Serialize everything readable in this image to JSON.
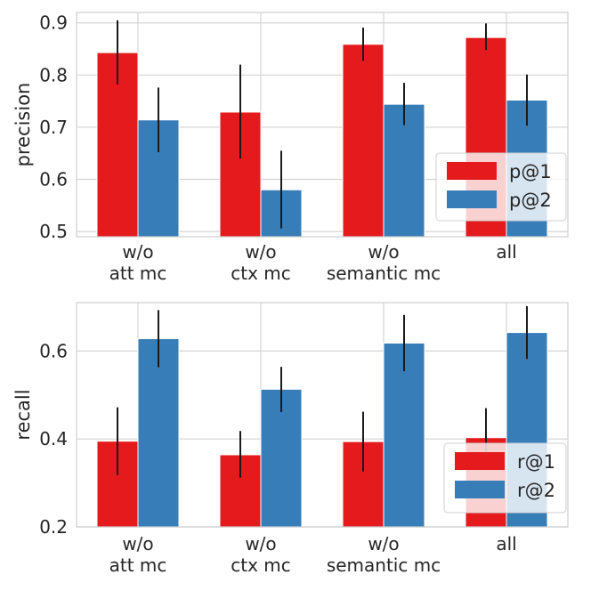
{
  "chart_data": [
    {
      "type": "bar",
      "categories": [
        [
          "w/o",
          "att mc"
        ],
        [
          "w/o",
          "ctx mc"
        ],
        [
          "w/o",
          "semantic mc"
        ],
        [
          "all"
        ]
      ],
      "ylabel": "precision",
      "ylim": [
        0.49,
        0.92
      ],
      "yticks": [
        0.5,
        0.6,
        0.7,
        0.8,
        0.9
      ],
      "yticklabels": [
        "0.5",
        "0.6",
        "0.7",
        "0.8",
        "0.9"
      ],
      "legend_position": "lower-right",
      "series": [
        {
          "name": "p@1",
          "color": "#e41a1c",
          "values": [
            0.843,
            0.729,
            0.859,
            0.872
          ],
          "error_low": [
            0.782,
            0.64,
            0.827,
            0.848
          ],
          "error_high": [
            0.905,
            0.82,
            0.891,
            0.899
          ]
        },
        {
          "name": "p@2",
          "color": "#377eb8",
          "values": [
            0.714,
            0.58,
            0.744,
            0.752
          ],
          "error_low": [
            0.652,
            0.506,
            0.704,
            0.703
          ],
          "error_high": [
            0.776,
            0.655,
            0.785,
            0.801
          ]
        }
      ]
    },
    {
      "type": "bar",
      "categories": [
        [
          "w/o",
          "att mc"
        ],
        [
          "w/o",
          "ctx mc"
        ],
        [
          "w/o",
          "semantic mc"
        ],
        [
          "all"
        ]
      ],
      "ylabel": "recall",
      "ylim": [
        0.2,
        0.71
      ],
      "yticks": [
        0.2,
        0.4,
        0.6
      ],
      "yticklabels": [
        "0.2",
        "0.4",
        "0.6"
      ],
      "legend_position": "lower-right",
      "series": [
        {
          "name": "r@1",
          "color": "#e41a1c",
          "values": [
            0.395,
            0.364,
            0.394,
            0.403
          ],
          "error_low": [
            0.318,
            0.312,
            0.326,
            0.336
          ],
          "error_high": [
            0.472,
            0.418,
            0.462,
            0.47
          ]
        },
        {
          "name": "r@2",
          "color": "#377eb8",
          "values": [
            0.628,
            0.513,
            0.618,
            0.642
          ],
          "error_low": [
            0.563,
            0.461,
            0.554,
            0.582
          ],
          "error_high": [
            0.693,
            0.564,
            0.682,
            0.702
          ]
        }
      ]
    }
  ]
}
